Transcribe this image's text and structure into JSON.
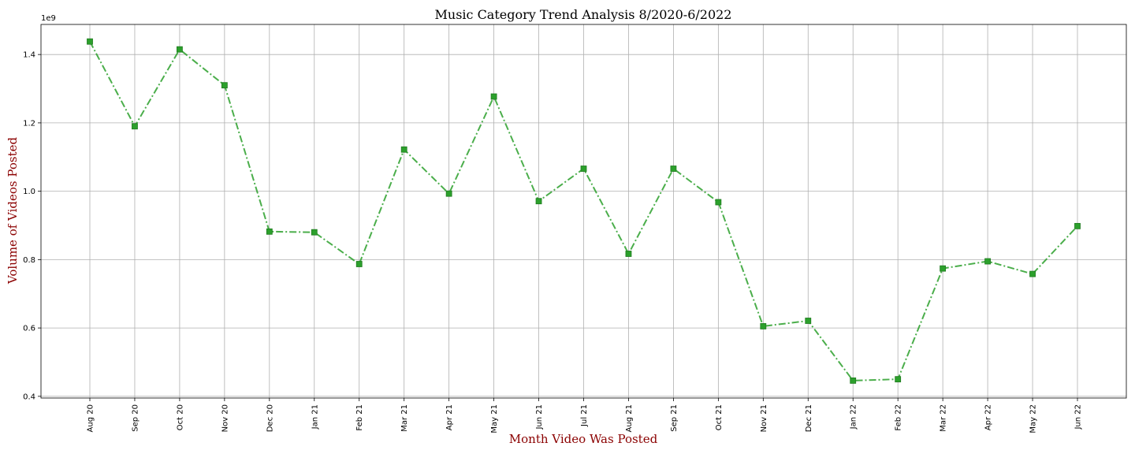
{
  "chart_data": {
    "type": "line",
    "title": "Music Category Trend Analysis 8/2020-6/2022",
    "xlabel": "Month Video Was Posted",
    "ylabel": "Volume of Videos Posted",
    "y_offset_label": "1e9",
    "categories": [
      "Aug 20",
      "Sep 20",
      "Oct 20",
      "Nov 20",
      "Dec 20",
      "Jan 21",
      "Feb 21",
      "Mar 21",
      "Apr 21",
      "May 21",
      "Jun 21",
      "Jul 21",
      "Aug 21",
      "Sep 21",
      "Oct 21",
      "Nov 21",
      "Dec 21",
      "Jan 22",
      "Feb 22",
      "Mar 22",
      "Apr 22",
      "May 22",
      "Jun 22"
    ],
    "series": [
      {
        "values": [
          1.438,
          1.19,
          1.415,
          1.31,
          0.882,
          0.88,
          0.787,
          1.122,
          0.993,
          1.277,
          0.971,
          1.066,
          0.817,
          1.066,
          0.968,
          0.605,
          0.621,
          0.446,
          0.45,
          0.774,
          0.795,
          0.758,
          0.898
        ],
        "color": "#2ca02c",
        "line_style": "dash-dot",
        "marker": "square"
      }
    ],
    "yticks": [
      "0.4",
      "0.6",
      "0.8",
      "1.0",
      "1.2",
      "1.4"
    ],
    "ylim": [
      0.395,
      1.488
    ],
    "grid": true
  }
}
